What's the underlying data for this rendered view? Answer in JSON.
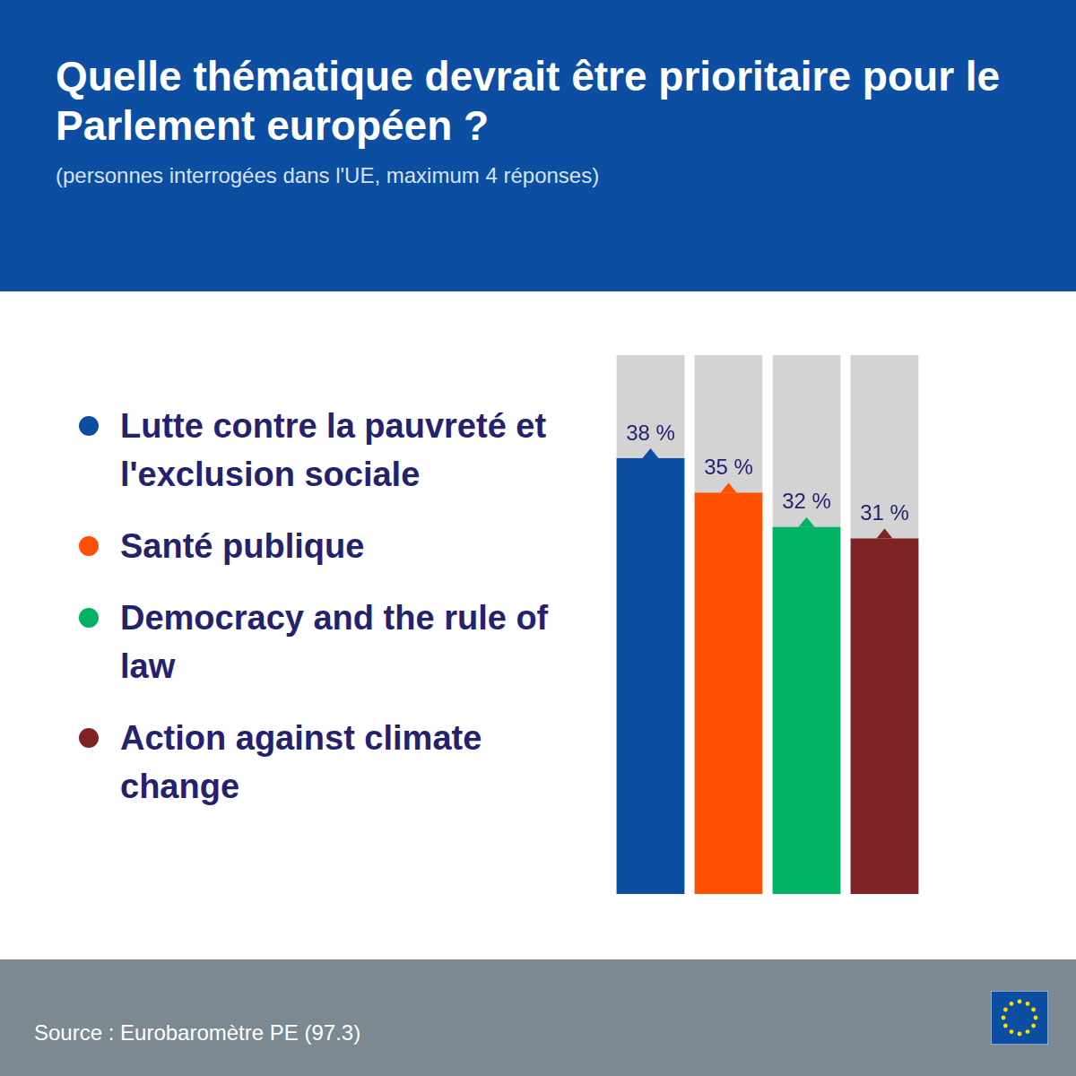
{
  "header": {
    "title": "Quelle thématique devrait être prioritaire pour le Parlement européen ?",
    "subtitle": "(personnes interrogées dans l'UE, maximum 4 réponses)"
  },
  "chart_data": {
    "type": "bar",
    "categories": [
      "Lutte contre la pauvreté et l'exclusion sociale",
      "Santé publique",
      "Democracy and the rule of law",
      "Action against climate change"
    ],
    "values": [
      38,
      35,
      32,
      31
    ],
    "value_labels": [
      "38 %",
      "35 %",
      "32 %",
      "31 %"
    ],
    "colors": [
      "#0b4ea2",
      "#fe5000",
      "#00b262",
      "#7f2224"
    ],
    "data_labels": true,
    "legend": "left",
    "tick_labels": false,
    "grid": false,
    "ylim": [
      0,
      47
    ]
  },
  "footer": {
    "source": "Source : Eurobaromètre PE (97.3)"
  }
}
